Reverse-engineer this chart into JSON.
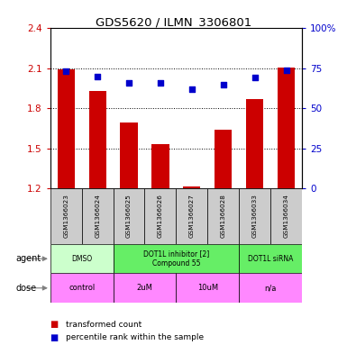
{
  "title": "GDS5620 / ILMN_3306801",
  "samples": [
    "GSM1366023",
    "GSM1366024",
    "GSM1366025",
    "GSM1366026",
    "GSM1366027",
    "GSM1366028",
    "GSM1366033",
    "GSM1366034"
  ],
  "bar_values": [
    2.095,
    1.93,
    1.69,
    1.53,
    1.21,
    1.64,
    1.87,
    2.105
  ],
  "dot_values": [
    73,
    70,
    66,
    66,
    62,
    65,
    69,
    74
  ],
  "ylim_left": [
    1.2,
    2.4
  ],
  "ylim_right": [
    0,
    100
  ],
  "yticks_left": [
    1.2,
    1.5,
    1.8,
    2.1,
    2.4
  ],
  "yticks_right": [
    0,
    25,
    50,
    75,
    100
  ],
  "ytick_labels_left": [
    "1.2",
    "1.5",
    "1.8",
    "2.1",
    "2.4"
  ],
  "ytick_labels_right": [
    "0",
    "25",
    "50",
    "75",
    "100%"
  ],
  "bar_color": "#cc0000",
  "dot_color": "#0000cc",
  "agent_groups": [
    {
      "label": "DMSO",
      "start": 0,
      "end": 2,
      "color": "#ccffcc"
    },
    {
      "label": "DOT1L inhibitor [2]\nCompound 55",
      "start": 2,
      "end": 6,
      "color": "#66ee66"
    },
    {
      "label": "DOT1L siRNA",
      "start": 6,
      "end": 8,
      "color": "#66ee66"
    }
  ],
  "dose_groups": [
    {
      "label": "control",
      "start": 0,
      "end": 2,
      "color": "#ff88ff"
    },
    {
      "label": "2uM",
      "start": 2,
      "end": 4,
      "color": "#ff88ff"
    },
    {
      "label": "10uM",
      "start": 4,
      "end": 6,
      "color": "#ff88ff"
    },
    {
      "label": "n/a",
      "start": 6,
      "end": 8,
      "color": "#ff88ff"
    }
  ],
  "legend_items": [
    {
      "label": "transformed count",
      "color": "#cc0000"
    },
    {
      "label": "percentile rank within the sample",
      "color": "#0000cc"
    }
  ],
  "background_color": "#ffffff",
  "sample_bg_color": "#cccccc"
}
